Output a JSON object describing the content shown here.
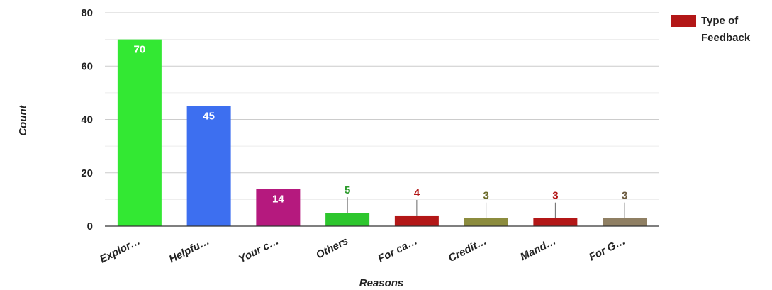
{
  "chart_data": {
    "type": "bar",
    "title": "",
    "xlabel": "Reasons",
    "ylabel": "Count",
    "ylim": [
      0,
      80
    ],
    "yticks": [
      0,
      20,
      40,
      60,
      80
    ],
    "grid": true,
    "categories": [
      "Explor…",
      "Helpfu…",
      "Your c…",
      "Others",
      "For ca…",
      "Credit…",
      "Mand…",
      "For G…"
    ],
    "values": [
      70,
      45,
      14,
      5,
      4,
      3,
      3,
      3
    ],
    "colors": [
      "#33e833",
      "#3d6ff0",
      "#b5197e",
      "#2dc62d",
      "#b31717",
      "#8c8c3e",
      "#b31717",
      "#8f7f63"
    ],
    "label_colors": [
      "#ffffff",
      "#ffffff",
      "#ffffff",
      "#2a9a2a",
      "#b31717",
      "#6b6b2a",
      "#b31717",
      "#6b5a3e"
    ],
    "legend": {
      "position": "top-right",
      "label": "Type of Feedback",
      "lines": [
        "Type of",
        "Feedback"
      ],
      "color": "#b31717"
    }
  }
}
